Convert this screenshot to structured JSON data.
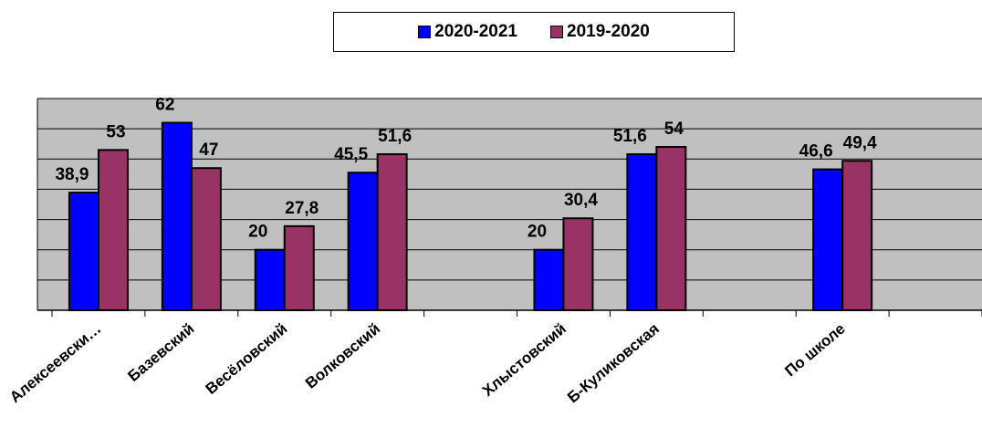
{
  "chart_data": {
    "type": "bar",
    "title": "",
    "xlabel": "",
    "ylabel": "",
    "ylim": [
      0,
      70
    ],
    "grid": true,
    "legend_position": "top-center",
    "categories": [
      "Алексеевски…",
      "Базевский",
      "Весёловский",
      "Волковский",
      "",
      "Хлыстовский",
      "Б-Куликовская",
      "",
      "По школе",
      ""
    ],
    "series": [
      {
        "name": "2020-2021",
        "color": "#0000FF",
        "values": [
          38.9,
          62,
          20,
          45.5,
          null,
          20,
          51.6,
          null,
          46.6,
          null
        ],
        "labels": [
          "38,9",
          "62",
          "20",
          "45,5",
          "",
          "20",
          "51,6",
          "",
          "46,6",
          ""
        ]
      },
      {
        "name": "2019-2020",
        "color": "#993366",
        "values": [
          53,
          47,
          27.8,
          51.6,
          null,
          30.4,
          54,
          null,
          49.4,
          null
        ],
        "labels": [
          "53",
          "47",
          "27,8",
          "51,6",
          "",
          "30,4",
          "54",
          "",
          "49,4",
          ""
        ]
      }
    ]
  },
  "colors": {
    "plot_background": "#C0C0C0",
    "gridline": "#000000"
  }
}
